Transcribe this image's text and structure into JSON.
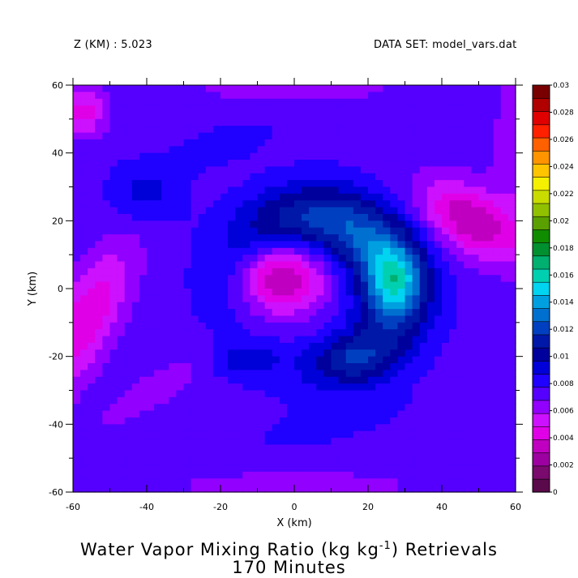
{
  "header": {
    "level_label": "Z (KM) : 5.023",
    "dataset_label": "DATA SET: model_vars.dat"
  },
  "title": {
    "line1_before": "Water Vapor Mixing Ratio (kg kg",
    "line1_sup": "-1",
    "line1_after": ") Retrievals",
    "line2": "170 Minutes"
  },
  "chart_data": {
    "type": "heatmap",
    "subtype": "filled-contour",
    "xlabel": "X (km)",
    "ylabel": "Y (km)",
    "xlim": [
      -60,
      60
    ],
    "ylim": [
      -60,
      60
    ],
    "x_ticks": [
      -60,
      -40,
      -20,
      0,
      20,
      40,
      60
    ],
    "y_ticks": [
      -60,
      -40,
      -20,
      0,
      20,
      40,
      60
    ],
    "x_tick_labels": [
      "-60",
      "-40",
      "-20",
      "0",
      "20",
      "40",
      "60"
    ],
    "y_tick_labels": [
      "-60",
      "-40",
      "-20",
      "0",
      "20",
      "40",
      "60"
    ],
    "colorbar": {
      "levels": [
        0,
        0.001,
        0.002,
        0.003,
        0.004,
        0.005,
        0.006,
        0.007,
        0.008,
        0.009,
        0.01,
        0.011,
        0.012,
        0.013,
        0.014,
        0.015,
        0.016,
        0.017,
        0.018,
        0.019,
        0.02,
        0.021,
        0.022,
        0.023,
        0.024,
        0.025,
        0.026,
        0.027,
        0.028,
        0.029,
        0.03
      ],
      "tick_labels": [
        "0",
        "0.002",
        "0.004",
        "0.006",
        "0.008",
        "0.01",
        "0.012",
        "0.014",
        "0.016",
        "0.018",
        "0.02",
        "0.022",
        "0.024",
        "0.026",
        "0.028",
        "0.03"
      ],
      "colors": [
        "#5a0a4a",
        "#7a0a6e",
        "#9c00a0",
        "#c000c0",
        "#e000e8",
        "#cc11ff",
        "#9200ff",
        "#5500ff",
        "#2000ff",
        "#0000d8",
        "#00009c",
        "#0018a8",
        "#0040c0",
        "#0070d0",
        "#00a0e0",
        "#00d4f0",
        "#00d0b0",
        "#00b070",
        "#009030",
        "#108c00",
        "#5aa000",
        "#90c000",
        "#c8dc00",
        "#f4f000",
        "#ffc400",
        "#ff9400",
        "#ff6000",
        "#ff2000",
        "#e00000",
        "#b00000",
        "#780000"
      ]
    },
    "field_components": [
      {
        "kind": "background",
        "value": 0.0076
      },
      {
        "kind": "ring",
        "x": 5,
        "y": -2,
        "radius": 22,
        "width": 11,
        "value": 0.0032,
        "wave_amp": 0.0025,
        "wave_deg": 45
      },
      {
        "kind": "blob",
        "x": -4,
        "y": 4,
        "sx": 12,
        "sy": 11,
        "value": -0.0052
      },
      {
        "kind": "blob",
        "x": 27,
        "y": 3,
        "sx": 7,
        "sy": 10,
        "value": 0.0042
      },
      {
        "kind": "blob",
        "x": 15,
        "y": -21,
        "sx": 10,
        "sy": 6,
        "value": 0.0022
      },
      {
        "kind": "blob",
        "x": -14,
        "y": -21,
        "sx": 9,
        "sy": 5,
        "value": 0.0016
      },
      {
        "kind": "blob",
        "x": 48,
        "y": 20,
        "sx": 15,
        "sy": 9,
        "rot": -35,
        "value": -0.0046
      },
      {
        "kind": "blob",
        "x": -57,
        "y": -10,
        "sx": 8,
        "sy": 24,
        "rot": -25,
        "value": -0.0036
      },
      {
        "kind": "blob",
        "x": -57,
        "y": 52,
        "sx": 6,
        "sy": 7,
        "value": -0.003
      },
      {
        "kind": "blob",
        "x": 63,
        "y": 42,
        "sx": 8,
        "sy": 28,
        "value": -0.0018
      },
      {
        "kind": "blob",
        "x": -38,
        "y": -30,
        "sx": 22,
        "sy": 6,
        "rot": 35,
        "value": -0.001
      },
      {
        "kind": "blob",
        "x": 10,
        "y": -40,
        "sx": 20,
        "sy": 5,
        "rot": 15,
        "value": 0.0009
      },
      {
        "kind": "blob",
        "x": -40,
        "y": 28,
        "sx": 10,
        "sy": 9,
        "value": 0.0018
      },
      {
        "kind": "blob",
        "x": -20,
        "y": 42,
        "sx": 14,
        "sy": 5,
        "rot": 20,
        "value": 0.0012
      },
      {
        "kind": "blob",
        "x": 0,
        "y": 60,
        "sx": 25,
        "sy": 5,
        "value": -0.0016
      },
      {
        "kind": "blob",
        "x": 0,
        "y": -58,
        "sx": 40,
        "sy": 5,
        "value": -0.001
      }
    ]
  }
}
